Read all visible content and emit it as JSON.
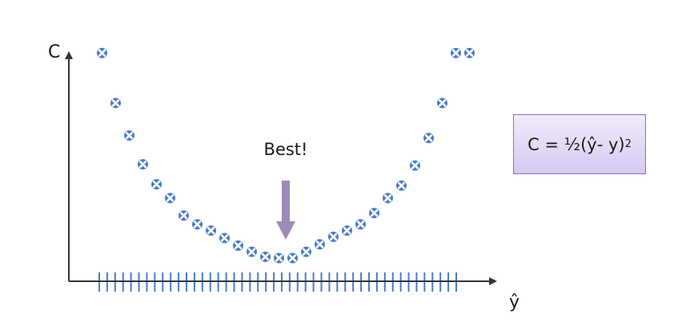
{
  "chart_data": {
    "type": "scatter",
    "title": "",
    "ylabel": "C",
    "xlabel": "ŷ",
    "x": [
      -13.5,
      -12.5,
      -11.5,
      -10.5,
      -9.5,
      -8.5,
      -7.5,
      -6.5,
      -5.5,
      -4.5,
      -3.5,
      -2.5,
      -1.5,
      -0.5,
      0.5,
      1.5,
      2.5,
      3.5,
      4.5,
      5.5,
      6.5,
      7.5,
      8.5,
      9.5,
      10.5,
      11.5,
      12.5,
      13.5
    ],
    "y": [
      8.2,
      6.2,
      4.9,
      3.75,
      2.95,
      2.4,
      1.7,
      1.35,
      1.1,
      0.8,
      0.5,
      0.25,
      0.05,
      0.0,
      0.0,
      0.25,
      0.55,
      0.85,
      1.1,
      1.35,
      1.8,
      2.4,
      2.9,
      3.7,
      4.8,
      6.2,
      8.2,
      8.2
    ],
    "x_ticks_count": 46,
    "annotation": {
      "text": "Best!",
      "arrow": "down",
      "color": "#9b8bb8"
    },
    "marker": {
      "shape": "x-circle",
      "color": "#4a7cc4"
    },
    "axis_color": "#333333",
    "grid": false,
    "legend": false
  },
  "formula": {
    "prefix": "C = ½(ŷ- y)",
    "exponent": "2",
    "background": "#e0d6f6",
    "border_color": "#8a6cb8"
  }
}
